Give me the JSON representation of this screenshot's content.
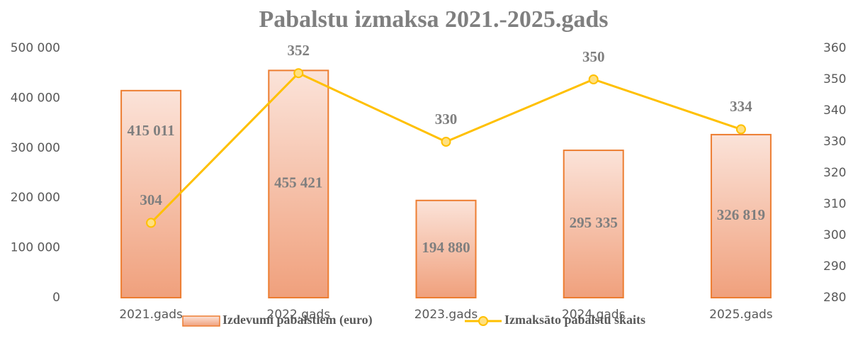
{
  "chart_data": {
    "type": "bar",
    "title": "Pabalstu izmaksa 2021.-2025.gads",
    "categories": [
      "2021.gads",
      "2022.gads",
      "2023.gads",
      "2024.gads",
      "2025.gads"
    ],
    "series": [
      {
        "name": "Izdevumi pabalstiem (euro)",
        "type": "bar",
        "color": "#ed7d31",
        "values": [
          415011,
          455421,
          194880,
          295335,
          326819
        ],
        "value_labels": [
          "415 011",
          "455 421",
          "194 880",
          "295 335",
          "326 819"
        ]
      },
      {
        "name": "Izmaksāto pabalstu skaits",
        "type": "line",
        "axis": "y2",
        "color": "#ffc000",
        "values": [
          304,
          352,
          330,
          350,
          334
        ]
      }
    ],
    "ylim": [
      0,
      500000
    ],
    "yticks": [
      0,
      {
        "value": 100000,
        "label": "100 000"
      },
      {
        "value": 200000,
        "label": "200 000"
      },
      {
        "value": 300000,
        "label": "300 000"
      },
      {
        "value": 400000,
        "label": "400 000"
      },
      {
        "value": 500000,
        "label": "500 000"
      }
    ],
    "y2lim": [
      280,
      360
    ],
    "y2ticks": [
      280,
      290,
      300,
      310,
      320,
      330,
      340,
      350,
      360
    ],
    "legend": "bottom"
  }
}
